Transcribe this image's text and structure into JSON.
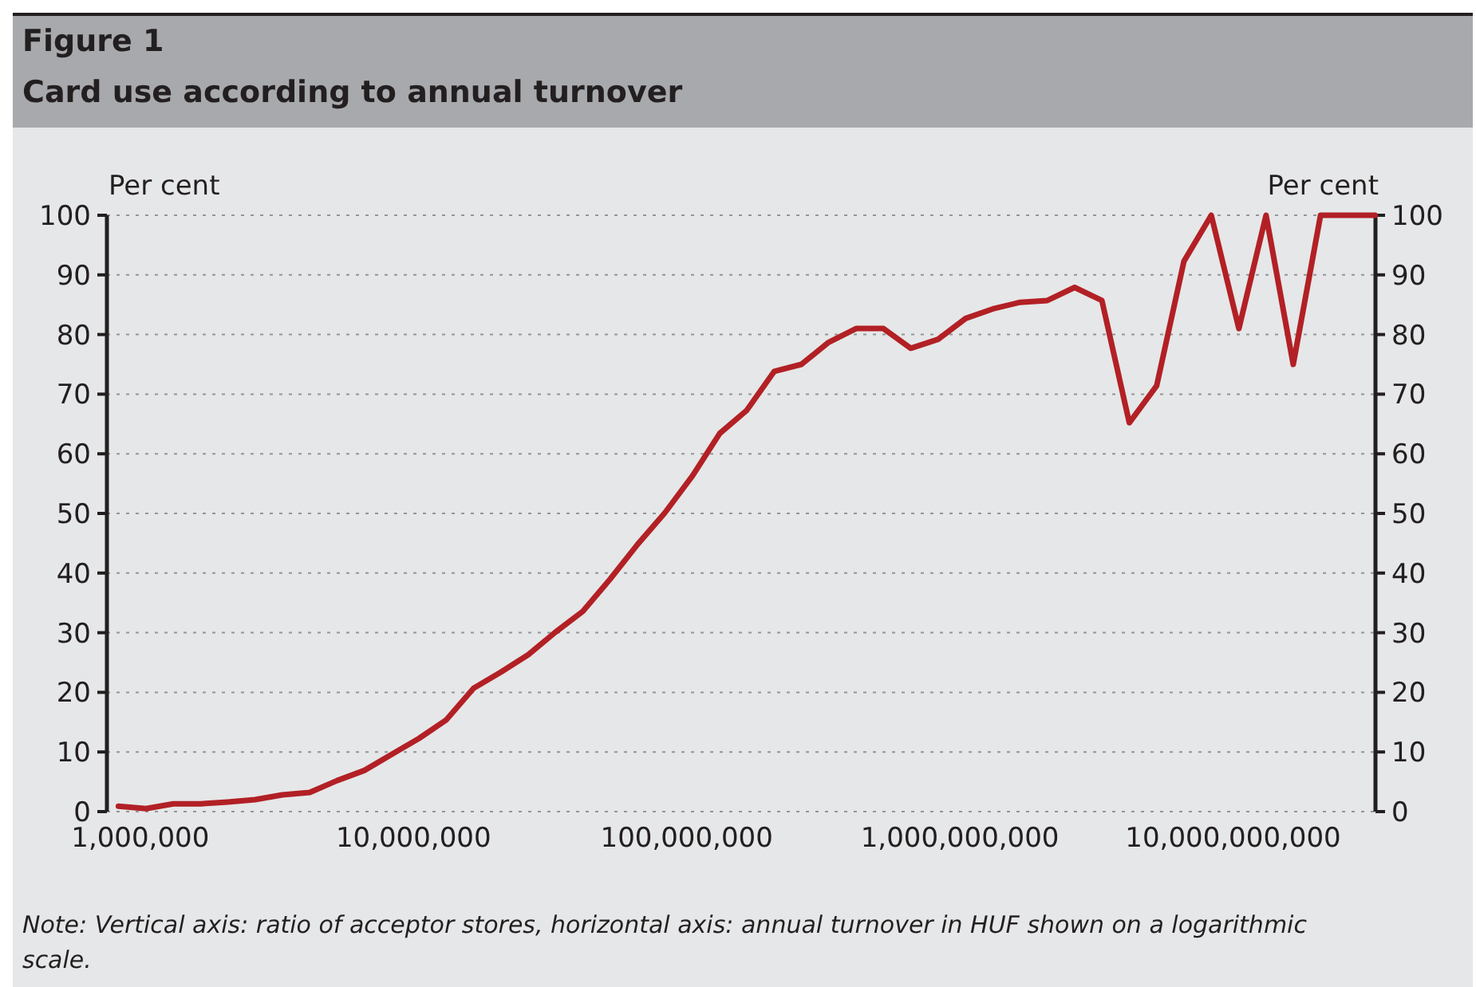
{
  "chart_data": {
    "type": "line",
    "title": "Figure 1",
    "subtitle": "Card use according to annual turnover",
    "ylabel": "Per cent",
    "y2label": "Per cent",
    "x": [
      832000,
      1050000,
      1320000,
      1660000,
      2090000,
      2630000,
      3310000,
      4170000,
      5250000,
      6610000,
      8320000,
      10500000,
      13200000,
      16600000,
      20900000,
      26300000,
      33100000,
      41700000,
      52500000,
      66100000,
      83200000,
      105000000,
      132000000,
      166000000,
      209000000,
      263000000,
      331000000,
      417000000,
      525000000,
      661000000,
      832000000,
      1050000000,
      1320000000,
      1660000000,
      2090000000,
      2630000000,
      3310000000,
      4170000000,
      5250000000,
      6610000000,
      8320000000,
      10500000000,
      13200000000,
      16600000000,
      20900000000,
      26300000000,
      33100000000
    ],
    "series": [
      {
        "color": "#b22025",
        "values": [
          0.9,
          0.5,
          1.3,
          1.3,
          1.6,
          2.0,
          2.8,
          3.2,
          5.2,
          6.9,
          9.6,
          12.3,
          15.4,
          20.7,
          23.4,
          26.3,
          30.1,
          33.6,
          39.0,
          44.8,
          50.1,
          56.3,
          63.4,
          67.3,
          73.8,
          75,
          78.7,
          81,
          81,
          77.7,
          79.2,
          82.7,
          84.3,
          85.4,
          85.7,
          87.9,
          85.7,
          65.2,
          71.4,
          92.3,
          100,
          81,
          100,
          75,
          100,
          100,
          100
        ]
      }
    ],
    "log": "x",
    "xlim": [
      755000,
      33200000000
    ],
    "xticks": [
      {
        "value": 1000000,
        "label": "1,000,000"
      },
      {
        "value": 10000000,
        "label": "10,000,000"
      },
      {
        "value": 100000000,
        "label": "100,000,000"
      },
      {
        "value": 1000000000,
        "label": "1,000,000,000"
      },
      {
        "value": 10000000000,
        "label": "10,000,000,000"
      }
    ],
    "ylim": [
      0,
      100
    ],
    "yticks": [
      0,
      10,
      20,
      30,
      40,
      50,
      60,
      70,
      80,
      90,
      100
    ],
    "y2lim": [
      0,
      100
    ],
    "y2ticks": [
      0,
      10,
      20,
      30,
      40,
      50,
      60,
      70,
      80,
      90,
      100
    ],
    "grid": "y",
    "line_style": "solid",
    "marker": "none",
    "annotations": [
      "Note: Vertical axis: ratio of acceptor stores, horizontal axis: annual turnover in HUF shown on a logarithmic scale."
    ]
  }
}
